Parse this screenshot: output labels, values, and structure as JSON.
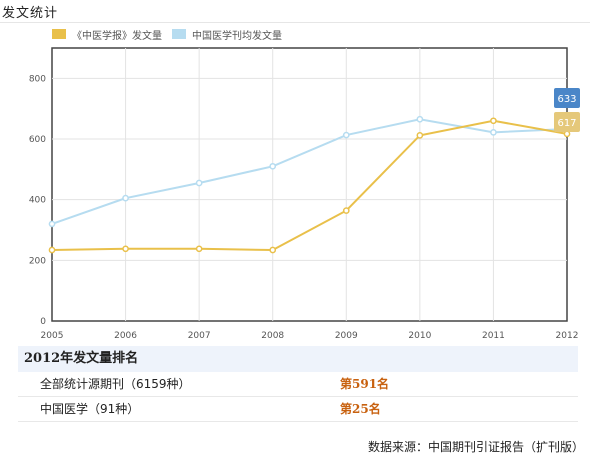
{
  "page": {
    "title": "发文统计"
  },
  "colors": {
    "series_yellow": "#e9c04a",
    "series_blue": "#b6dcf0",
    "badge_blue": "#4a86c8",
    "badge_yellow": "#e5c87a",
    "rank_orange": "#c8610f"
  },
  "chart_data": {
    "type": "line",
    "x": [
      "2005",
      "2006",
      "2007",
      "2008",
      "2009",
      "2010",
      "2011",
      "2012"
    ],
    "ylim": [
      0,
      900
    ],
    "yticks": [
      "0",
      "200",
      "400",
      "600",
      "800"
    ],
    "ytick_values": [
      0,
      200,
      400,
      600,
      800
    ],
    "grid": true,
    "legend_position": "top-left",
    "series": [
      {
        "name": "《中医学报》发文量",
        "color": "#e9c04a",
        "values": [
          234,
          238,
          238,
          234,
          364,
          612,
          660,
          617
        ],
        "end_label": "617"
      },
      {
        "name": "中国医学刊均发文量",
        "color": "#b6dcf0",
        "values": [
          320,
          405,
          455,
          510,
          613,
          665,
          622,
          633
        ],
        "end_label": "633"
      }
    ]
  },
  "ranking": {
    "title": "2012年发文量排名",
    "rows": [
      {
        "label": "全部统计源期刊（6159种）",
        "rank": "第591名"
      },
      {
        "label": "中国医学（91种）",
        "rank": "第25名"
      }
    ]
  },
  "source": "数据来源：中国期刊引证报告（扩刊版）"
}
